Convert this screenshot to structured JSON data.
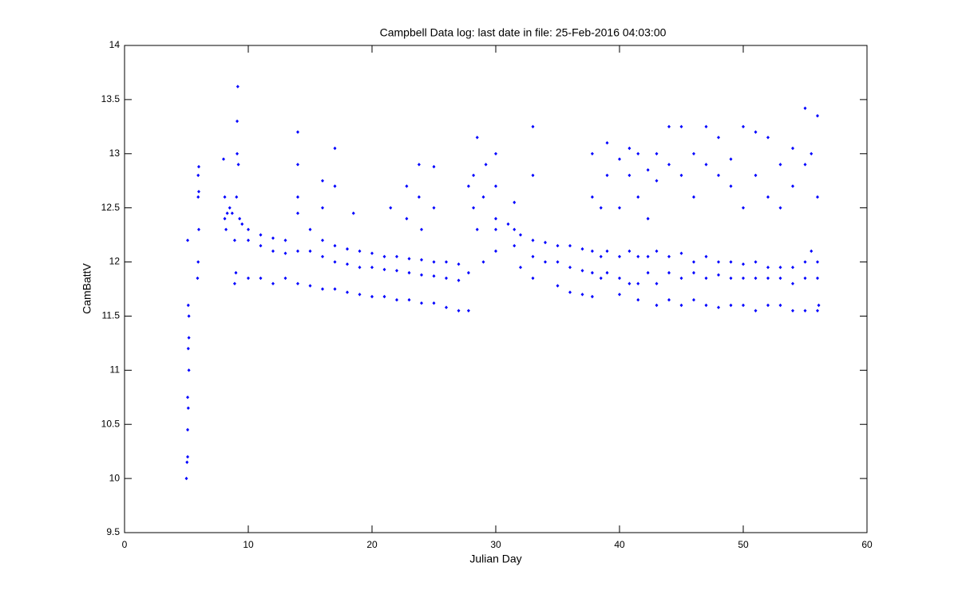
{
  "chart_data": {
    "type": "scatter",
    "title": "Campbell Data log: last date in file: 25-Feb-2016 04:03:00",
    "x_label": "Julian Day",
    "y_label": "CamBattV",
    "color": "#0000ff",
    "xlim": [
      0,
      60
    ],
    "xticks": [
      0,
      10,
      20,
      30,
      40,
      50,
      60
    ],
    "ylim": [
      9.5,
      14
    ],
    "yticks": [
      9.5,
      10,
      10.5,
      11,
      11.5,
      12,
      12.5,
      13,
      13.5,
      14
    ],
    "x": [
      5,
      5.05,
      5.1,
      5.1,
      5.15,
      5.1,
      5.2,
      5.15,
      5.2,
      5.2,
      5.15,
      5.1,
      5.9,
      5.95,
      6,
      5.95,
      6,
      5.95,
      6,
      8,
      8.1,
      8.1,
      8.2,
      8.3,
      8.5,
      8.7,
      8.9,
      8.9,
      9,
      9.05,
      9.1,
      9.1,
      9.15,
      9.2,
      9.3,
      9.5,
      10,
      10,
      10,
      11,
      11,
      11,
      12,
      12,
      12,
      13,
      13,
      13,
      14,
      14,
      14,
      15,
      15,
      15,
      16,
      16,
      16,
      17,
      17,
      17,
      18,
      18,
      18,
      19,
      19,
      19,
      20,
      20,
      20,
      21,
      21,
      21,
      22,
      22,
      22,
      23,
      23,
      23,
      24,
      24,
      24,
      25,
      25,
      25,
      26,
      26,
      26,
      27,
      27,
      27,
      14,
      14,
      14,
      16,
      16,
      17,
      17,
      18.5,
      21.5,
      22.8,
      22.8,
      23.8,
      23.8,
      25,
      25,
      24,
      27.8,
      27.8,
      27.8,
      28.2,
      28.2,
      28.5,
      28.5,
      29,
      29,
      29.2,
      30,
      30,
      30,
      30,
      30,
      31,
      31.5,
      31.5,
      31.5,
      32,
      32,
      33,
      33,
      33,
      33,
      33,
      34,
      34,
      35,
      35,
      35,
      36,
      36,
      36,
      37,
      37,
      37,
      37.8,
      37.8,
      37.8,
      37.8,
      37.8,
      38.5,
      38.5,
      38.5,
      39,
      39,
      39,
      39,
      40,
      40,
      40,
      40,
      40,
      40.8,
      40.8,
      40.8,
      40.8,
      41.5,
      41.5,
      41.5,
      41.5,
      41.5,
      42.3,
      42.3,
      42.3,
      42.3,
      43,
      43,
      43,
      43,
      43,
      44,
      44,
      44,
      44,
      44,
      45,
      45,
      45,
      45,
      45,
      46,
      46,
      46,
      46,
      46,
      47,
      47,
      47,
      47,
      47,
      48,
      48,
      48,
      48,
      48,
      49,
      49,
      49,
      49,
      49,
      50,
      50,
      50,
      50,
      50,
      51,
      51,
      51,
      51,
      51,
      52,
      52,
      52,
      52,
      52,
      53,
      53,
      53,
      53,
      53,
      54,
      54,
      54,
      54,
      54,
      55,
      55,
      55,
      55,
      55,
      56,
      56,
      56,
      56,
      56,
      55.5,
      55.5,
      56.1
    ],
    "values": [
      10.0,
      10.15,
      10.2,
      10.45,
      10.65,
      10.75,
      11.0,
      11.2,
      11.3,
      11.5,
      11.6,
      12.2,
      11.85,
      12.0,
      12.3,
      12.6,
      12.65,
      12.8,
      12.88,
      12.95,
      12.6,
      12.4,
      12.3,
      12.45,
      12.5,
      12.45,
      12.2,
      11.8,
      11.9,
      12.6,
      13.0,
      13.3,
      13.62,
      12.9,
      12.4,
      12.35,
      12.3,
      12.2,
      11.85,
      12.25,
      12.15,
      11.85,
      12.22,
      12.1,
      11.8,
      12.2,
      12.08,
      11.85,
      12.45,
      12.1,
      11.8,
      12.3,
      12.1,
      11.78,
      12.2,
      12.05,
      11.75,
      12.15,
      12.0,
      11.75,
      12.12,
      11.98,
      11.72,
      12.1,
      11.95,
      11.7,
      12.08,
      11.95,
      11.68,
      12.05,
      11.93,
      11.68,
      12.05,
      11.92,
      11.65,
      12.03,
      11.9,
      11.65,
      12.02,
      11.88,
      11.62,
      12.0,
      11.87,
      11.62,
      12.0,
      11.85,
      11.58,
      11.98,
      11.83,
      11.55,
      12.6,
      12.9,
      13.2,
      12.5,
      12.75,
      12.7,
      13.05,
      12.45,
      12.5,
      12.4,
      12.7,
      12.6,
      12.9,
      12.5,
      12.88,
      12.3,
      11.55,
      11.9,
      12.7,
      12.5,
      12.8,
      13.15,
      12.3,
      12.0,
      12.6,
      12.9,
      12.4,
      12.3,
      12.1,
      12.7,
      13.0,
      12.35,
      12.3,
      12.15,
      12.55,
      12.25,
      11.95,
      12.2,
      12.05,
      11.85,
      12.8,
      13.25,
      12.18,
      12.0,
      12.15,
      12.0,
      11.78,
      12.15,
      11.95,
      11.72,
      12.12,
      11.92,
      11.7,
      12.1,
      11.9,
      11.68,
      12.6,
      13.0,
      12.05,
      11.85,
      12.5,
      12.1,
      11.9,
      12.8,
      13.1,
      12.05,
      11.85,
      11.7,
      12.5,
      12.95,
      12.1,
      11.8,
      12.8,
      13.05,
      12.05,
      11.8,
      11.65,
      12.6,
      13.0,
      12.05,
      11.9,
      12.4,
      12.85,
      12.1,
      11.8,
      11.6,
      12.75,
      13.0,
      12.05,
      11.9,
      11.65,
      12.9,
      13.25,
      12.08,
      11.85,
      11.6,
      12.8,
      13.25,
      12.0,
      11.9,
      11.65,
      12.6,
      13.0,
      12.05,
      11.85,
      11.6,
      12.9,
      13.25,
      12.0,
      11.88,
      11.58,
      12.8,
      13.15,
      12.0,
      11.85,
      11.6,
      12.7,
      12.95,
      11.98,
      11.85,
      11.6,
      12.5,
      13.25,
      12.0,
      11.85,
      11.55,
      12.8,
      13.2,
      11.95,
      11.85,
      11.6,
      12.6,
      13.15,
      11.95,
      11.85,
      11.6,
      12.5,
      12.9,
      11.95,
      11.8,
      11.55,
      12.7,
      13.05,
      12.0,
      11.85,
      11.55,
      12.9,
      13.42,
      12.0,
      11.85,
      11.55,
      12.6,
      13.35,
      12.1,
      13.0,
      11.6
    ]
  }
}
